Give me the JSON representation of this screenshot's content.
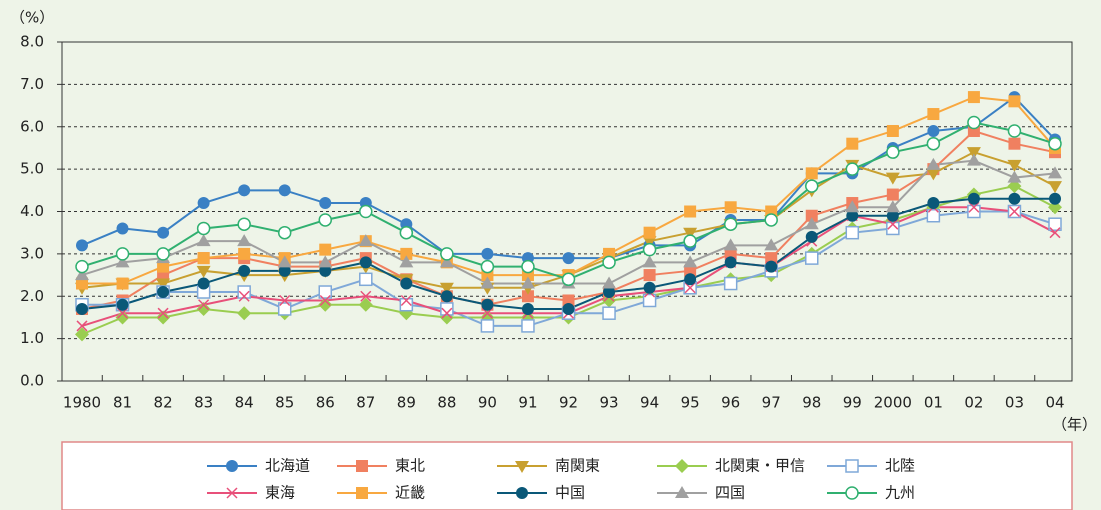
{
  "chart_data": {
    "type": "line",
    "y_unit": "（%）",
    "x_unit": "（年）",
    "categories": [
      "1980",
      "81",
      "82",
      "83",
      "84",
      "85",
      "86",
      "87",
      "89",
      "88",
      "90",
      "91",
      "92",
      "93",
      "94",
      "95",
      "96",
      "97",
      "98",
      "99",
      "2000",
      "01",
      "02",
      "03",
      "04"
    ],
    "ylim": [
      0,
      8
    ],
    "yticks": [
      {
        "value": 0,
        "label": "0.0"
      },
      {
        "value": 1,
        "label": "1.0"
      },
      {
        "value": 2,
        "label": "2.0"
      },
      {
        "value": 3,
        "label": "3.0"
      },
      {
        "value": 4,
        "label": "4.0"
      },
      {
        "value": 5,
        "label": "5.0"
      },
      {
        "value": 6,
        "label": "6.0"
      },
      {
        "value": 7,
        "label": "7.0"
      },
      {
        "value": 8,
        "label": "8.0"
      }
    ],
    "grid": true,
    "series": [
      {
        "name": "北海道",
        "color": "#3a80c4",
        "marker": "circle",
        "values": [
          3.2,
          3.6,
          3.5,
          4.2,
          4.5,
          4.5,
          4.2,
          4.2,
          3.7,
          3.0,
          3.0,
          2.9,
          2.9,
          2.9,
          3.2,
          3.2,
          3.8,
          3.8,
          4.9,
          4.9,
          5.5,
          5.9,
          6.0,
          6.7,
          5.7
        ]
      },
      {
        "name": "東北",
        "color": "#f08060",
        "marker": "square",
        "values": [
          1.7,
          1.9,
          2.5,
          2.9,
          2.9,
          2.7,
          2.7,
          2.9,
          2.4,
          2.0,
          1.8,
          2.0,
          1.9,
          2.1,
          2.5,
          2.6,
          3.0,
          2.9,
          3.9,
          4.2,
          4.4,
          5.0,
          5.9,
          5.6,
          5.4
        ]
      },
      {
        "name": "南関東",
        "color": "#c8a030",
        "marker": "triangle-down",
        "values": [
          2.2,
          2.3,
          2.3,
          2.6,
          2.5,
          2.5,
          2.6,
          2.7,
          2.4,
          2.2,
          2.2,
          2.2,
          2.5,
          2.9,
          3.3,
          3.5,
          3.7,
          3.8,
          4.5,
          5.1,
          4.8,
          4.9,
          5.4,
          5.1,
          4.6
        ]
      },
      {
        "name": "北関東・甲信",
        "color": "#9acd50",
        "marker": "diamond",
        "values": [
          1.1,
          1.5,
          1.5,
          1.7,
          1.6,
          1.6,
          1.8,
          1.8,
          1.6,
          1.5,
          1.5,
          1.5,
          1.5,
          1.9,
          2.0,
          2.2,
          2.4,
          2.5,
          3.0,
          3.6,
          3.8,
          4.1,
          4.4,
          4.6,
          4.1
        ]
      },
      {
        "name": "北陸",
        "color": "#7fa8d8",
        "marker": "square-open",
        "values": [
          1.8,
          1.8,
          2.1,
          2.1,
          2.1,
          1.7,
          2.1,
          2.4,
          1.8,
          1.7,
          1.3,
          1.3,
          1.6,
          1.6,
          1.9,
          2.2,
          2.3,
          2.6,
          2.9,
          3.5,
          3.6,
          3.9,
          4.0,
          4.0,
          3.7
        ]
      },
      {
        "name": "東海",
        "color": "#e8507a",
        "marker": "x",
        "values": [
          1.3,
          1.6,
          1.6,
          1.8,
          2.0,
          1.9,
          1.9,
          2.0,
          1.9,
          1.6,
          1.6,
          1.6,
          1.6,
          2.0,
          2.1,
          2.2,
          2.8,
          2.7,
          3.3,
          3.9,
          3.7,
          4.1,
          4.1,
          4.0,
          3.5
        ]
      },
      {
        "name": "近畿",
        "color": "#f8a840",
        "marker": "square",
        "values": [
          2.3,
          2.3,
          2.7,
          2.9,
          3.0,
          2.9,
          3.1,
          3.3,
          3.0,
          2.8,
          2.5,
          2.5,
          2.5,
          3.0,
          3.5,
          4.0,
          4.1,
          4.0,
          4.9,
          5.6,
          5.9,
          6.3,
          6.7,
          6.6,
          5.5
        ]
      },
      {
        "name": "中国",
        "color": "#0a5878",
        "marker": "circle",
        "values": [
          1.7,
          1.8,
          2.1,
          2.3,
          2.6,
          2.6,
          2.6,
          2.8,
          2.3,
          2.0,
          1.8,
          1.7,
          1.7,
          2.1,
          2.2,
          2.4,
          2.8,
          2.7,
          3.4,
          3.9,
          3.9,
          4.2,
          4.3,
          4.3,
          4.3
        ]
      },
      {
        "name": "四国",
        "color": "#a0a0a0",
        "marker": "triangle",
        "values": [
          2.5,
          2.8,
          2.9,
          3.3,
          3.3,
          2.8,
          2.8,
          3.3,
          2.8,
          2.8,
          2.3,
          2.3,
          2.3,
          2.3,
          2.8,
          2.8,
          3.2,
          3.2,
          3.7,
          4.1,
          4.1,
          5.1,
          5.2,
          4.8,
          4.9
        ]
      },
      {
        "name": "九州",
        "color": "#30b070",
        "marker": "circle-open",
        "values": [
          2.7,
          3.0,
          3.0,
          3.6,
          3.7,
          3.5,
          3.8,
          4.0,
          3.5,
          3.0,
          2.7,
          2.7,
          2.4,
          2.8,
          3.1,
          3.3,
          3.7,
          3.8,
          4.6,
          5.0,
          5.4,
          5.6,
          6.1,
          5.9,
          5.6
        ]
      }
    ]
  }
}
